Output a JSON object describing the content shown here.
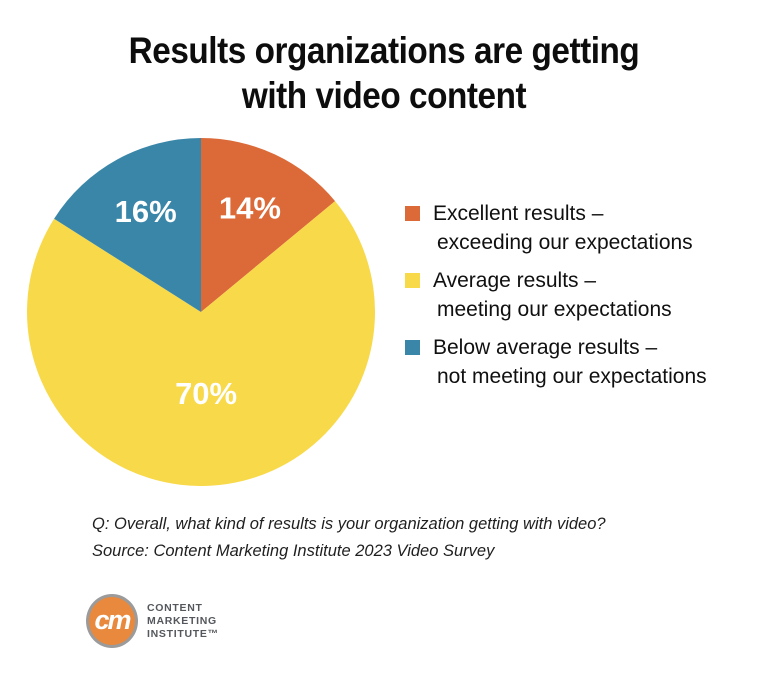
{
  "title_lines": [
    "Results organizations are getting",
    "with video content"
  ],
  "chart_data": {
    "type": "pie",
    "title": "Results organizations are getting with video content",
    "direction": "clockwise",
    "start_angle_deg": 0,
    "legend_position": "right",
    "labels_inside": true,
    "label_color": "#ffffff",
    "categories": [
      "Excellent results – exceeding our expectations",
      "Average results – meeting our expectations",
      "Below average results – not meeting our expectations"
    ],
    "values": [
      14,
      70,
      16
    ],
    "slices": [
      {
        "legend_line1": "Excellent results –",
        "legend_line2": "exceeding our expectations",
        "value": 14,
        "pct_label": "14%",
        "color": "#DC6A38"
      },
      {
        "legend_line1": "Average results –",
        "legend_line2": "meeting our expectations",
        "value": 70,
        "pct_label": "70%",
        "color": "#F8D94A"
      },
      {
        "legend_line1": "Below average results –",
        "legend_line2": "not meeting our expectations",
        "value": 16,
        "pct_label": "16%",
        "color": "#3A86A8"
      }
    ]
  },
  "footnotes": {
    "question": "Q: Overall, what kind of results is your organization getting with video?",
    "source": "Source: Content Marketing Institute 2023 Video Survey"
  },
  "logo": {
    "monogram": "cm",
    "circle_color": "#E8893D",
    "ring_color": "#9B9B9B",
    "lines": [
      "CONTENT",
      "MARKETING",
      "INSTITUTE™"
    ]
  }
}
